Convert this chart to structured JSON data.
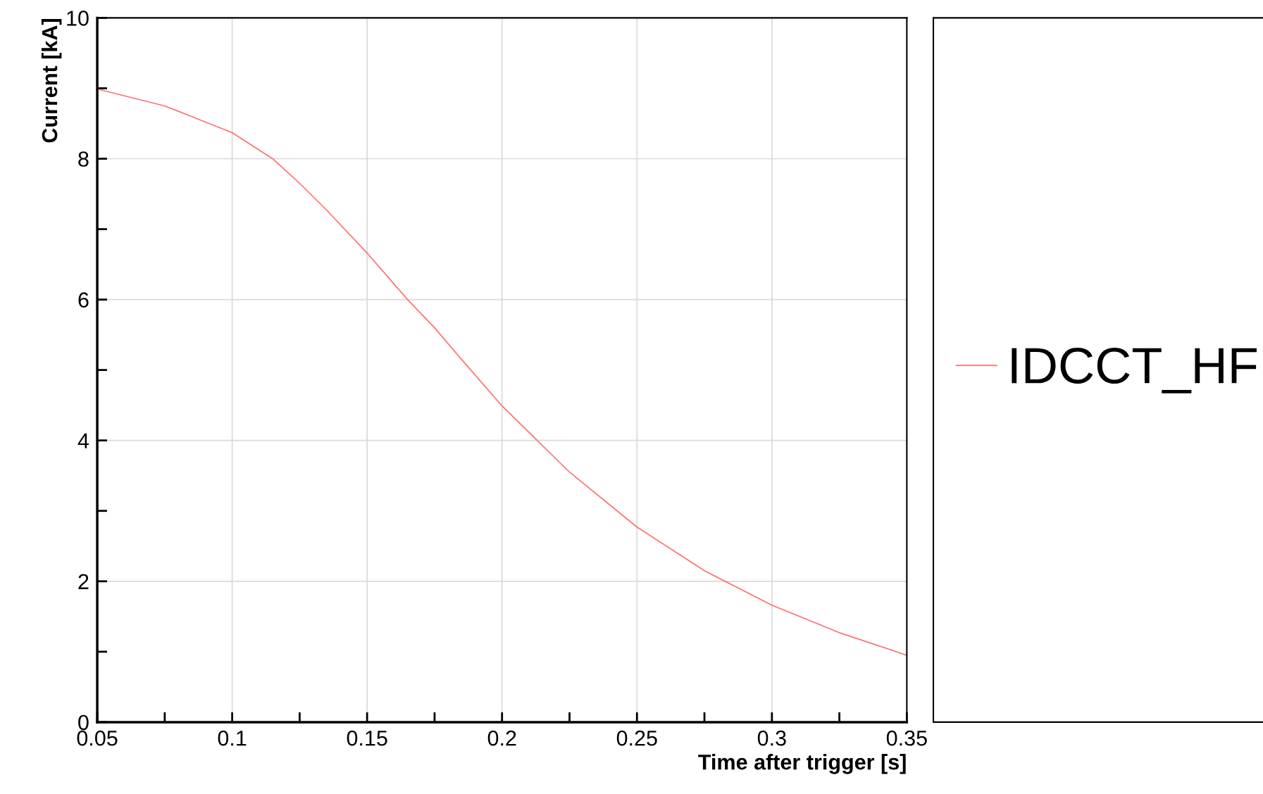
{
  "chart_data": {
    "type": "line",
    "xlabel": "Time after trigger [s]",
    "ylabel": "Current [kA]",
    "x": [
      0.05,
      0.075,
      0.1,
      0.115,
      0.125,
      0.135,
      0.15,
      0.165,
      0.175,
      0.185,
      0.2,
      0.225,
      0.25,
      0.275,
      0.3,
      0.325,
      0.35
    ],
    "series": [
      {
        "name": "IDCCT_HF",
        "color": "#ff6f6f",
        "values": [
          8.99,
          8.75,
          8.37,
          8.0,
          7.65,
          7.27,
          6.66,
          6.0,
          5.6,
          5.15,
          4.49,
          3.55,
          2.77,
          2.15,
          1.66,
          1.27,
          0.95
        ]
      }
    ],
    "xlim": [
      0.05,
      0.35
    ],
    "ylim": [
      0,
      10
    ],
    "xticks": [
      0.05,
      {
        "value": 0.075,
        "label": null
      },
      0.1,
      {
        "value": 0.125,
        "label": null
      },
      0.15,
      {
        "value": 0.175,
        "label": null
      },
      0.2,
      {
        "value": 0.225,
        "label": null
      },
      0.25,
      {
        "value": 0.275,
        "label": null
      },
      0.3,
      {
        "value": 0.325,
        "label": null
      },
      0.35
    ],
    "yticks": [
      0,
      {
        "value": 1,
        "label": null
      },
      2,
      {
        "value": 3,
        "label": null
      },
      4,
      {
        "value": 5,
        "label": null
      },
      6,
      {
        "value": 7,
        "label": null
      },
      8,
      {
        "value": 9,
        "label": null
      },
      10
    ],
    "grid": true,
    "legend": "right",
    "marker": "none",
    "line_style": "solid"
  }
}
